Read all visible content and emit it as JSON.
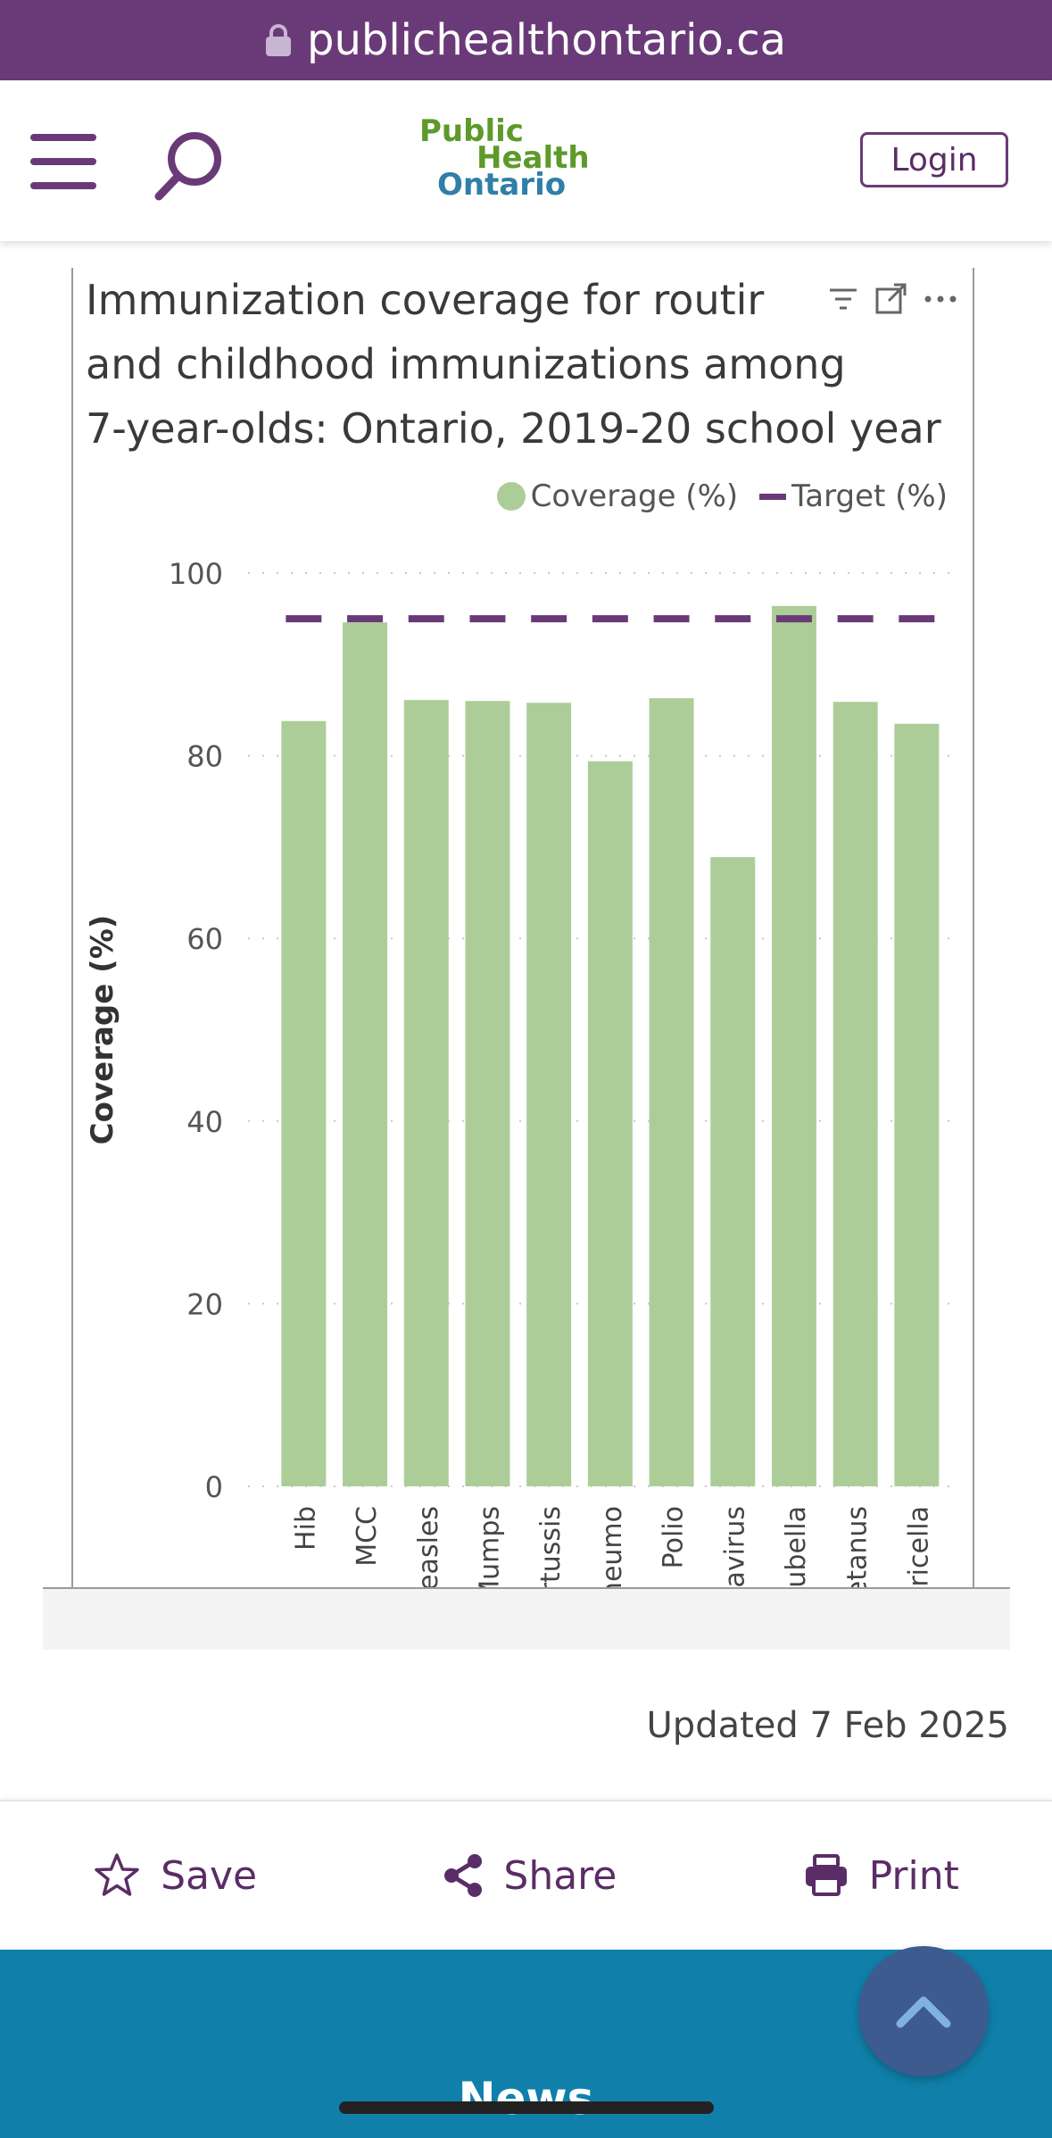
{
  "browser": {
    "url": "publichealthontario.ca"
  },
  "header": {
    "logo_line1": "Public",
    "logo_line2": "Health",
    "logo_line3": "Ontario",
    "login_label": "Login"
  },
  "chart_data": {
    "type": "bar",
    "title": "Immunization coverage for routine childhood and childhood immunizations among 7-year-olds: Ontario, 2019-20 school year",
    "title_lines": [
      "Immunization coverage for routir",
      "and childhood immunizations among",
      "7-year-olds: Ontario, 2019-20 school year"
    ],
    "ylabel": "Coverage (%)",
    "xlabel": "",
    "ylim": [
      0,
      100
    ],
    "yticks": [
      0,
      20,
      40,
      60,
      80,
      100
    ],
    "grid": true,
    "legend_position": "top-right",
    "categories": [
      "Hib",
      "MCC",
      "Measles",
      "Mumps",
      "Pertussis",
      "Pneumo",
      "Polio",
      "Rotavirus",
      "Rubella",
      "Tetanus",
      "Varicella"
    ],
    "category_labels_visible": [
      "Hib",
      "MCC",
      "Measles",
      "Mumps",
      "ertussis",
      "neumo",
      "Polio",
      "tavirus",
      "Rubella",
      "etanus",
      "aricella"
    ],
    "series": [
      {
        "name": "Coverage (%)",
        "values": [
          83.8,
          94.6,
          86.1,
          86.0,
          85.8,
          79.4,
          86.3,
          68.9,
          96.4,
          85.9,
          83.5
        ],
        "color": "#adcd98"
      },
      {
        "name": "Target (%)",
        "values": [
          95,
          95,
          95,
          95,
          95,
          95,
          95,
          95,
          95,
          95,
          95
        ],
        "color": "#6a3a78"
      }
    ],
    "legend": [
      "Coverage (%)",
      "Target (%)"
    ]
  },
  "page": {
    "updated": "Updated 7 Feb 2025"
  },
  "actions": {
    "save_label": "Save",
    "share_label": "Share",
    "print_label": "Print"
  },
  "footer": {
    "news_label": "News"
  },
  "colors": {
    "brand_purple": "#6a3a78",
    "bar_green": "#adcd98",
    "footer_blue": "#1080aa"
  }
}
